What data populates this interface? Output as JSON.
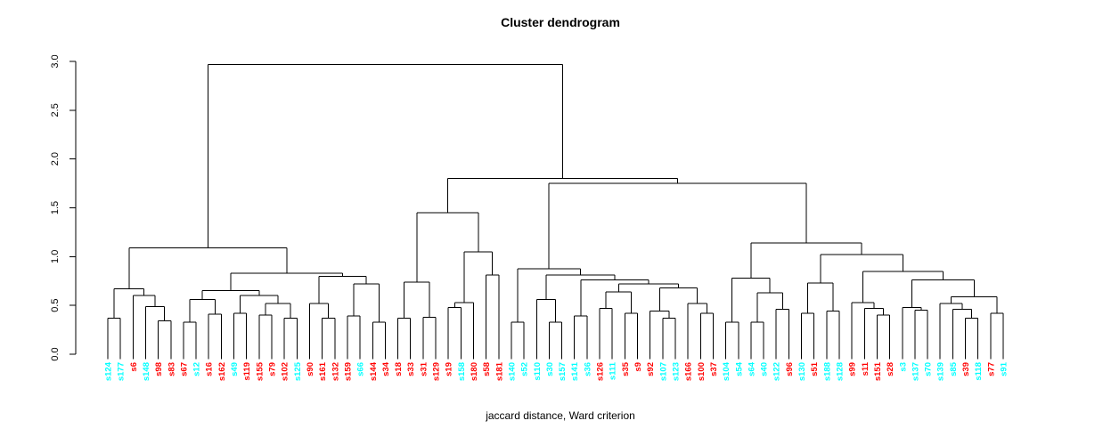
{
  "title": "Cluster dendrogram",
  "caption": "jaccard distance, Ward criterion",
  "colors": {
    "background": "#FFFFFF",
    "line": "#000000",
    "text": "#000000",
    "leaf_cyan": "#00FFFF",
    "leaf_red": "#FF0000"
  },
  "chart_data": {
    "type": "dendrogram",
    "title": "Cluster dendrogram",
    "xlabel": "jaccard distance, Ward criterion",
    "ylabel": "",
    "ylim": [
      0,
      3
    ],
    "y_ticks": [
      "0.0",
      "0.5",
      "1.0",
      "1.5",
      "2.0",
      "2.5",
      "3.0"
    ],
    "grid": "off",
    "legend": "none",
    "root_height": 2.97,
    "leaves": [
      {
        "label": "s124",
        "color": "cyan"
      },
      {
        "label": "s177",
        "color": "cyan"
      },
      {
        "label": "s6",
        "color": "red"
      },
      {
        "label": "s148",
        "color": "cyan"
      },
      {
        "label": "s98",
        "color": "red"
      },
      {
        "label": "s83",
        "color": "red"
      },
      {
        "label": "s67",
        "color": "red"
      },
      {
        "label": "s12",
        "color": "cyan"
      },
      {
        "label": "s16",
        "color": "red"
      },
      {
        "label": "s162",
        "color": "red"
      },
      {
        "label": "s49",
        "color": "cyan"
      },
      {
        "label": "s119",
        "color": "red"
      },
      {
        "label": "s155",
        "color": "red"
      },
      {
        "label": "s79",
        "color": "red"
      },
      {
        "label": "s102",
        "color": "red"
      },
      {
        "label": "s125",
        "color": "cyan"
      },
      {
        "label": "s90",
        "color": "red"
      },
      {
        "label": "s161",
        "color": "red"
      },
      {
        "label": "s132",
        "color": "red"
      },
      {
        "label": "s159",
        "color": "red"
      },
      {
        "label": "s66",
        "color": "cyan"
      },
      {
        "label": "s144",
        "color": "red"
      },
      {
        "label": "s34",
        "color": "red"
      },
      {
        "label": "s18",
        "color": "red"
      },
      {
        "label": "s33",
        "color": "red"
      },
      {
        "label": "s31",
        "color": "red"
      },
      {
        "label": "s129",
        "color": "red"
      },
      {
        "label": "s19",
        "color": "red"
      },
      {
        "label": "s158",
        "color": "cyan"
      },
      {
        "label": "s180",
        "color": "red"
      },
      {
        "label": "s58",
        "color": "red"
      },
      {
        "label": "s181",
        "color": "red"
      },
      {
        "label": "s140",
        "color": "cyan"
      },
      {
        "label": "s52",
        "color": "cyan"
      },
      {
        "label": "s110",
        "color": "cyan"
      },
      {
        "label": "s30",
        "color": "cyan"
      },
      {
        "label": "s157",
        "color": "cyan"
      },
      {
        "label": "s141",
        "color": "cyan"
      },
      {
        "label": "s36",
        "color": "cyan"
      },
      {
        "label": "s126",
        "color": "red"
      },
      {
        "label": "s111",
        "color": "cyan"
      },
      {
        "label": "s35",
        "color": "red"
      },
      {
        "label": "s9",
        "color": "red"
      },
      {
        "label": "s92",
        "color": "red"
      },
      {
        "label": "s107",
        "color": "cyan"
      },
      {
        "label": "s123",
        "color": "cyan"
      },
      {
        "label": "s166",
        "color": "red"
      },
      {
        "label": "s100",
        "color": "red"
      },
      {
        "label": "s37",
        "color": "red"
      },
      {
        "label": "s104",
        "color": "cyan"
      },
      {
        "label": "s54",
        "color": "cyan"
      },
      {
        "label": "s64",
        "color": "cyan"
      },
      {
        "label": "s40",
        "color": "cyan"
      },
      {
        "label": "s122",
        "color": "cyan"
      },
      {
        "label": "s96",
        "color": "red"
      },
      {
        "label": "s130",
        "color": "cyan"
      },
      {
        "label": "s51",
        "color": "red"
      },
      {
        "label": "s188",
        "color": "cyan"
      },
      {
        "label": "s128",
        "color": "cyan"
      },
      {
        "label": "s99",
        "color": "red"
      },
      {
        "label": "s11",
        "color": "red"
      },
      {
        "label": "s151",
        "color": "red"
      },
      {
        "label": "s28",
        "color": "red"
      },
      {
        "label": "s3",
        "color": "cyan"
      },
      {
        "label": "s137",
        "color": "cyan"
      },
      {
        "label": "s70",
        "color": "cyan"
      },
      {
        "label": "s139",
        "color": "cyan"
      },
      {
        "label": "s85",
        "color": "cyan"
      },
      {
        "label": "s39",
        "color": "red"
      },
      {
        "label": "s118",
        "color": "cyan"
      },
      {
        "label": "s77",
        "color": "red"
      },
      {
        "label": "s91",
        "color": "cyan"
      }
    ],
    "tree": {
      "h": 2.97,
      "c": [
        {
          "h": 1.09,
          "c": [
            {
              "h": 0.67,
              "c": [
                {
                  "h": 0.37,
                  "c": [
                    0,
                    1
                  ]
                },
                {
                  "h": 0.6,
                  "c": [
                    2,
                    {
                      "h": 0.49,
                      "c": [
                        3,
                        {
                          "h": 0.34,
                          "c": [
                            4,
                            5
                          ]
                        }
                      ]
                    }
                  ]
                }
              ]
            },
            {
              "h": 0.83,
              "c": [
                {
                  "h": 0.65,
                  "c": [
                    {
                      "h": 0.56,
                      "c": [
                        {
                          "h": 0.33,
                          "c": [
                            6,
                            7
                          ]
                        },
                        {
                          "h": 0.41,
                          "c": [
                            8,
                            9
                          ]
                        }
                      ]
                    },
                    {
                      "h": 0.6,
                      "c": [
                        {
                          "h": 0.42,
                          "c": [
                            10,
                            11
                          ]
                        },
                        {
                          "h": 0.52,
                          "c": [
                            {
                              "h": 0.4,
                              "c": [
                                12,
                                13
                              ]
                            },
                            {
                              "h": 0.37,
                              "c": [
                                14,
                                15
                              ]
                            }
                          ]
                        }
                      ]
                    }
                  ]
                },
                {
                  "h": 0.8,
                  "c": [
                    {
                      "h": 0.52,
                      "c": [
                        16,
                        {
                          "h": 0.37,
                          "c": [
                            17,
                            18
                          ]
                        }
                      ]
                    },
                    {
                      "h": 0.72,
                      "c": [
                        {
                          "h": 0.39,
                          "c": [
                            19,
                            20
                          ]
                        },
                        {
                          "h": 0.33,
                          "c": [
                            21,
                            22
                          ]
                        }
                      ]
                    }
                  ]
                }
              ]
            }
          ]
        },
        {
          "h": 1.8,
          "c": [
            {
              "h": 1.45,
              "c": [
                {
                  "h": 0.74,
                  "c": [
                    {
                      "h": 0.37,
                      "c": [
                        23,
                        24
                      ]
                    },
                    {
                      "h": 0.38,
                      "c": [
                        25,
                        26
                      ]
                    }
                  ]
                },
                {
                  "h": 1.05,
                  "c": [
                    {
                      "h": 0.53,
                      "c": [
                        {
                          "h": 0.48,
                          "c": [
                            27,
                            28
                          ]
                        },
                        29
                      ]
                    },
                    {
                      "h": 0.81,
                      "c": [
                        30,
                        31
                      ]
                    }
                  ]
                }
              ]
            },
            {
              "h": 1.75,
              "c": [
                {
                  "h": 0.875,
                  "c": [
                    {
                      "h": 0.33,
                      "c": [
                        32,
                        33
                      ]
                    },
                    {
                      "h": 0.81,
                      "c": [
                        {
                          "h": 0.56,
                          "c": [
                            34,
                            {
                              "h": 0.33,
                              "c": [
                                35,
                                36
                              ]
                            }
                          ]
                        },
                        {
                          "h": 0.76,
                          "c": [
                            {
                              "h": 0.39,
                              "c": [
                                37,
                                38
                              ]
                            },
                            {
                              "h": 0.72,
                              "c": [
                                {
                                  "h": 0.64,
                                  "c": [
                                    {
                                      "h": 0.47,
                                      "c": [
                                        39,
                                        40
                                      ]
                                    },
                                    {
                                      "h": 0.42,
                                      "c": [
                                        41,
                                        42
                                      ]
                                    }
                                  ]
                                },
                                {
                                  "h": 0.68,
                                  "c": [
                                    {
                                      "h": 0.44,
                                      "c": [
                                        43,
                                        {
                                          "h": 0.37,
                                          "c": [
                                            44,
                                            45
                                          ]
                                        }
                                      ]
                                    },
                                    {
                                      "h": 0.52,
                                      "c": [
                                        46,
                                        {
                                          "h": 0.42,
                                          "c": [
                                            47,
                                            48
                                          ]
                                        }
                                      ]
                                    }
                                  ]
                                }
                              ]
                            }
                          ]
                        }
                      ]
                    }
                  ]
                },
                {
                  "h": 1.14,
                  "c": [
                    {
                      "h": 0.78,
                      "c": [
                        {
                          "h": 0.33,
                          "c": [
                            49,
                            50
                          ]
                        },
                        {
                          "h": 0.63,
                          "c": [
                            {
                              "h": 0.33,
                              "c": [
                                51,
                                52
                              ]
                            },
                            {
                              "h": 0.46,
                              "c": [
                                53,
                                54
                              ]
                            }
                          ]
                        }
                      ]
                    },
                    {
                      "h": 1.02,
                      "c": [
                        {
                          "h": 0.73,
                          "c": [
                            {
                              "h": 0.42,
                              "c": [
                                55,
                                56
                              ]
                            },
                            {
                              "h": 0.44,
                              "c": [
                                57,
                                58
                              ]
                            }
                          ]
                        },
                        {
                          "h": 0.85,
                          "c": [
                            {
                              "h": 0.53,
                              "c": [
                                59,
                                {
                                  "h": 0.47,
                                  "c": [
                                    60,
                                    {
                                      "h": 0.4,
                                      "c": [
                                        61,
                                        62
                                      ]
                                    }
                                  ]
                                }
                              ]
                            },
                            {
                              "h": 0.76,
                              "c": [
                                {
                                  "h": 0.48,
                                  "c": [
                                    63,
                                    {
                                      "h": 0.45,
                                      "c": [
                                        64,
                                        65
                                      ]
                                    }
                                  ]
                                },
                                {
                                  "h": 0.59,
                                  "c": [
                                    {
                                      "h": 0.52,
                                      "c": [
                                        66,
                                        {
                                          "h": 0.46,
                                          "c": [
                                            67,
                                            {
                                              "h": 0.37,
                                              "c": [
                                                68,
                                                69
                                              ]
                                            }
                                          ]
                                        }
                                      ]
                                    },
                                    {
                                      "h": 0.42,
                                      "c": [
                                        70,
                                        71
                                      ]
                                    }
                                  ]
                                }
                              ]
                            }
                          ]
                        }
                      ]
                    }
                  ]
                }
              ]
            }
          ]
        }
      ]
    }
  }
}
